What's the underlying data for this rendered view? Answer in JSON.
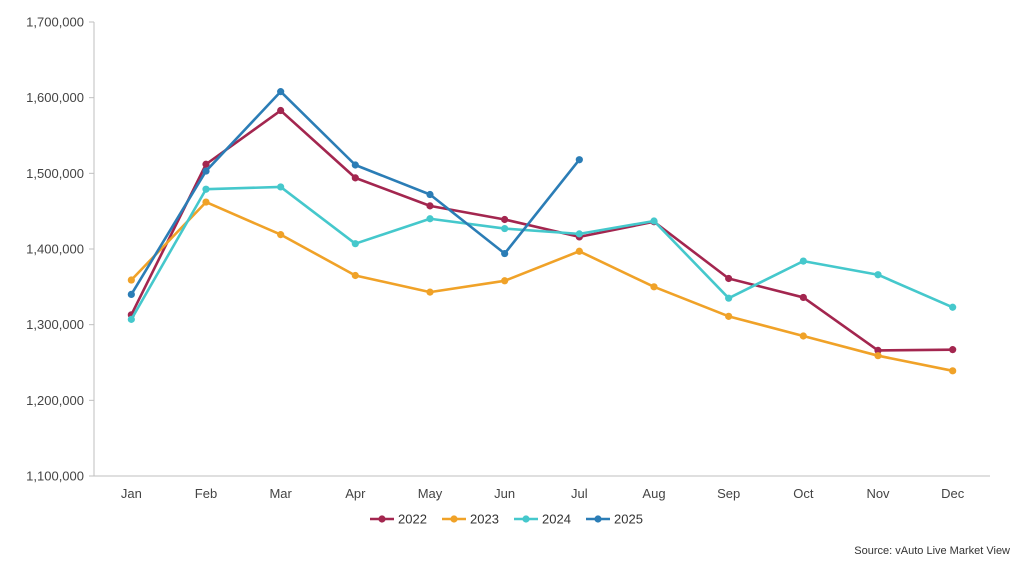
{
  "chart_data": {
    "type": "line",
    "title": "",
    "xlabel": "",
    "ylabel": "",
    "categories": [
      "Jan",
      "Feb",
      "Mar",
      "Apr",
      "May",
      "Jun",
      "Jul",
      "Aug",
      "Sep",
      "Oct",
      "Nov",
      "Dec"
    ],
    "ylim": [
      1100000,
      1700000
    ],
    "yticks": [
      1100000,
      1200000,
      1300000,
      1400000,
      1500000,
      1600000,
      1700000
    ],
    "ytick_labels": [
      "1,100,000",
      "1,200,000",
      "1,300,000",
      "1,400,000",
      "1,500,000",
      "1,600,000",
      "1,700,000"
    ],
    "grid": false,
    "legend_position": "bottom",
    "series": [
      {
        "name": "2022",
        "color": "#A3264F",
        "values": [
          1313000,
          1512000,
          1583000,
          1494000,
          1457000,
          1439000,
          1416000,
          1436000,
          1361000,
          1336000,
          1266000,
          1267000
        ]
      },
      {
        "name": "2023",
        "color": "#F0A228",
        "values": [
          1359000,
          1462000,
          1419000,
          1365000,
          1343000,
          1358000,
          1397000,
          1350000,
          1311000,
          1285000,
          1259000,
          1239000
        ]
      },
      {
        "name": "2024",
        "color": "#45C8CC",
        "values": [
          1307000,
          1479000,
          1482000,
          1407000,
          1440000,
          1427000,
          1420000,
          1437000,
          1335000,
          1384000,
          1366000,
          1323000
        ]
      },
      {
        "name": "2025",
        "color": "#2B7DB6",
        "values": [
          1340000,
          1503000,
          1608000,
          1511000,
          1472000,
          1394000,
          1518000,
          null,
          null,
          null,
          null,
          null
        ]
      }
    ]
  },
  "source_note": "Source: vAuto Live Market View"
}
